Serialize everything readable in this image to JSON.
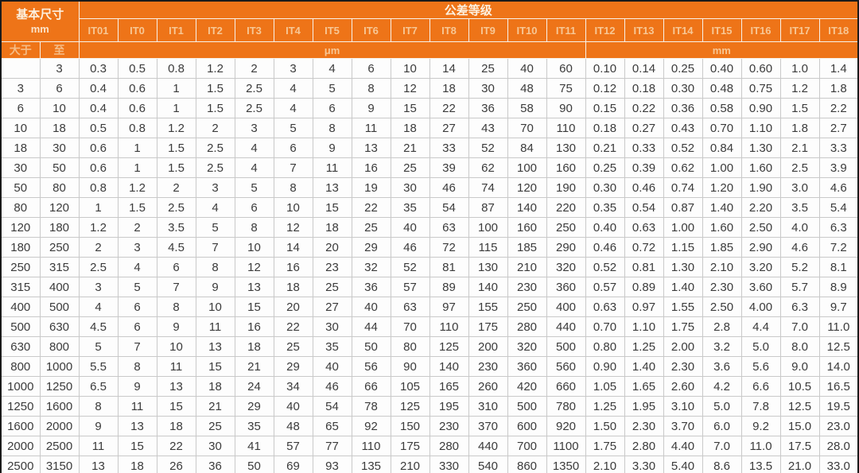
{
  "header": {
    "basic_size_title": "基本尺寸",
    "basic_size_unit": "mm",
    "tolerance_title": "公差等级",
    "over_label": "大于",
    "to_label": "至",
    "um_label": "μm",
    "mm_label": "mm"
  },
  "colors": {
    "header_bg": "#ee7418",
    "header_separator": "#f8f2ea",
    "header_title_text": "#fcf0df",
    "header_sub_text": "#f7c795",
    "body_text": "#3b3b3b",
    "gridline": "#c9c9c9",
    "outer_border": "#1a1a1a",
    "cell_bg": "#fdfdfd"
  },
  "chart_data": {
    "type": "table",
    "title": "公差等级",
    "size_columns": [
      "大于",
      "至"
    ],
    "it_grades": [
      "IT01",
      "IT0",
      "IT1",
      "IT2",
      "IT3",
      "IT4",
      "IT5",
      "IT6",
      "IT7",
      "IT8",
      "IT9",
      "IT10",
      "IT11",
      "IT12",
      "IT13",
      "IT14",
      "IT15",
      "IT16",
      "IT17",
      "IT18"
    ],
    "um_grades_count": 13,
    "mm_grades_count": 7,
    "rows": [
      {
        "over": "",
        "to": "3",
        "values": [
          "0.3",
          "0.5",
          "0.8",
          "1.2",
          "2",
          "3",
          "4",
          "6",
          "10",
          "14",
          "25",
          "40",
          "60",
          "0.10",
          "0.14",
          "0.25",
          "0.40",
          "0.60",
          "1.0",
          "1.4"
        ]
      },
      {
        "over": "3",
        "to": "6",
        "values": [
          "0.4",
          "0.6",
          "1",
          "1.5",
          "2.5",
          "4",
          "5",
          "8",
          "12",
          "18",
          "30",
          "48",
          "75",
          "0.12",
          "0.18",
          "0.30",
          "0.48",
          "0.75",
          "1.2",
          "1.8"
        ]
      },
      {
        "over": "6",
        "to": "10",
        "values": [
          "0.4",
          "0.6",
          "1",
          "1.5",
          "2.5",
          "4",
          "6",
          "9",
          "15",
          "22",
          "36",
          "58",
          "90",
          "0.15",
          "0.22",
          "0.36",
          "0.58",
          "0.90",
          "1.5",
          "2.2"
        ]
      },
      {
        "over": "10",
        "to": "18",
        "values": [
          "0.5",
          "0.8",
          "1.2",
          "2",
          "3",
          "5",
          "8",
          "11",
          "18",
          "27",
          "43",
          "70",
          "110",
          "0.18",
          "0.27",
          "0.43",
          "0.70",
          "1.10",
          "1.8",
          "2.7"
        ]
      },
      {
        "over": "18",
        "to": "30",
        "values": [
          "0.6",
          "1",
          "1.5",
          "2.5",
          "4",
          "6",
          "9",
          "13",
          "21",
          "33",
          "52",
          "84",
          "130",
          "0.21",
          "0.33",
          "0.52",
          "0.84",
          "1.30",
          "2.1",
          "3.3"
        ]
      },
      {
        "over": "30",
        "to": "50",
        "values": [
          "0.6",
          "1",
          "1.5",
          "2.5",
          "4",
          "7",
          "11",
          "16",
          "25",
          "39",
          "62",
          "100",
          "160",
          "0.25",
          "0.39",
          "0.62",
          "1.00",
          "1.60",
          "2.5",
          "3.9"
        ]
      },
      {
        "over": "50",
        "to": "80",
        "values": [
          "0.8",
          "1.2",
          "2",
          "3",
          "5",
          "8",
          "13",
          "19",
          "30",
          "46",
          "74",
          "120",
          "190",
          "0.30",
          "0.46",
          "0.74",
          "1.20",
          "1.90",
          "3.0",
          "4.6"
        ]
      },
      {
        "over": "80",
        "to": "120",
        "values": [
          "1",
          "1.5",
          "2.5",
          "4",
          "6",
          "10",
          "15",
          "22",
          "35",
          "54",
          "87",
          "140",
          "220",
          "0.35",
          "0.54",
          "0.87",
          "1.40",
          "2.20",
          "3.5",
          "5.4"
        ]
      },
      {
        "over": "120",
        "to": "180",
        "values": [
          "1.2",
          "2",
          "3.5",
          "5",
          "8",
          "12",
          "18",
          "25",
          "40",
          "63",
          "100",
          "160",
          "250",
          "0.40",
          "0.63",
          "1.00",
          "1.60",
          "2.50",
          "4.0",
          "6.3"
        ]
      },
      {
        "over": "180",
        "to": "250",
        "values": [
          "2",
          "3",
          "4.5",
          "7",
          "10",
          "14",
          "20",
          "29",
          "46",
          "72",
          "115",
          "185",
          "290",
          "0.46",
          "0.72",
          "1.15",
          "1.85",
          "2.90",
          "4.6",
          "7.2"
        ]
      },
      {
        "over": "250",
        "to": "315",
        "values": [
          "2.5",
          "4",
          "6",
          "8",
          "12",
          "16",
          "23",
          "32",
          "52",
          "81",
          "130",
          "210",
          "320",
          "0.52",
          "0.81",
          "1.30",
          "2.10",
          "3.20",
          "5.2",
          "8.1"
        ]
      },
      {
        "over": "315",
        "to": "400",
        "values": [
          "3",
          "5",
          "7",
          "9",
          "13",
          "18",
          "25",
          "36",
          "57",
          "89",
          "140",
          "230",
          "360",
          "0.57",
          "0.89",
          "1.40",
          "2.30",
          "3.60",
          "5.7",
          "8.9"
        ]
      },
      {
        "over": "400",
        "to": "500",
        "values": [
          "4",
          "6",
          "8",
          "10",
          "15",
          "20",
          "27",
          "40",
          "63",
          "97",
          "155",
          "250",
          "400",
          "0.63",
          "0.97",
          "1.55",
          "2.50",
          "4.00",
          "6.3",
          "9.7"
        ]
      },
      {
        "over": "500",
        "to": "630",
        "values": [
          "4.5",
          "6",
          "9",
          "11",
          "16",
          "22",
          "30",
          "44",
          "70",
          "110",
          "175",
          "280",
          "440",
          "0.70",
          "1.10",
          "1.75",
          "2.8",
          "4.4",
          "7.0",
          "11.0"
        ]
      },
      {
        "over": "630",
        "to": "800",
        "values": [
          "5",
          "7",
          "10",
          "13",
          "18",
          "25",
          "35",
          "50",
          "80",
          "125",
          "200",
          "320",
          "500",
          "0.80",
          "1.25",
          "2.00",
          "3.2",
          "5.0",
          "8.0",
          "12.5"
        ]
      },
      {
        "over": "800",
        "to": "1000",
        "values": [
          "5.5",
          "8",
          "11",
          "15",
          "21",
          "29",
          "40",
          "56",
          "90",
          "140",
          "230",
          "360",
          "560",
          "0.90",
          "1.40",
          "2.30",
          "3.6",
          "5.6",
          "9.0",
          "14.0"
        ]
      },
      {
        "over": "1000",
        "to": "1250",
        "values": [
          "6.5",
          "9",
          "13",
          "18",
          "24",
          "34",
          "46",
          "66",
          "105",
          "165",
          "260",
          "420",
          "660",
          "1.05",
          "1.65",
          "2.60",
          "4.2",
          "6.6",
          "10.5",
          "16.5"
        ]
      },
      {
        "over": "1250",
        "to": "1600",
        "values": [
          "8",
          "11",
          "15",
          "21",
          "29",
          "40",
          "54",
          "78",
          "125",
          "195",
          "310",
          "500",
          "780",
          "1.25",
          "1.95",
          "3.10",
          "5.0",
          "7.8",
          "12.5",
          "19.5"
        ]
      },
      {
        "over": "1600",
        "to": "2000",
        "values": [
          "9",
          "13",
          "18",
          "25",
          "35",
          "48",
          "65",
          "92",
          "150",
          "230",
          "370",
          "600",
          "920",
          "1.50",
          "2.30",
          "3.70",
          "6.0",
          "9.2",
          "15.0",
          "23.0"
        ]
      },
      {
        "over": "2000",
        "to": "2500",
        "values": [
          "11",
          "15",
          "22",
          "30",
          "41",
          "57",
          "77",
          "110",
          "175",
          "280",
          "440",
          "700",
          "1100",
          "1.75",
          "2.80",
          "4.40",
          "7.0",
          "11.0",
          "17.5",
          "28.0"
        ]
      },
      {
        "over": "2500",
        "to": "3150",
        "values": [
          "13",
          "18",
          "26",
          "36",
          "50",
          "69",
          "93",
          "135",
          "210",
          "330",
          "540",
          "860",
          "1350",
          "2.10",
          "3.30",
          "5.40",
          "8.6",
          "13.5",
          "21.0",
          "33.0"
        ]
      }
    ]
  }
}
